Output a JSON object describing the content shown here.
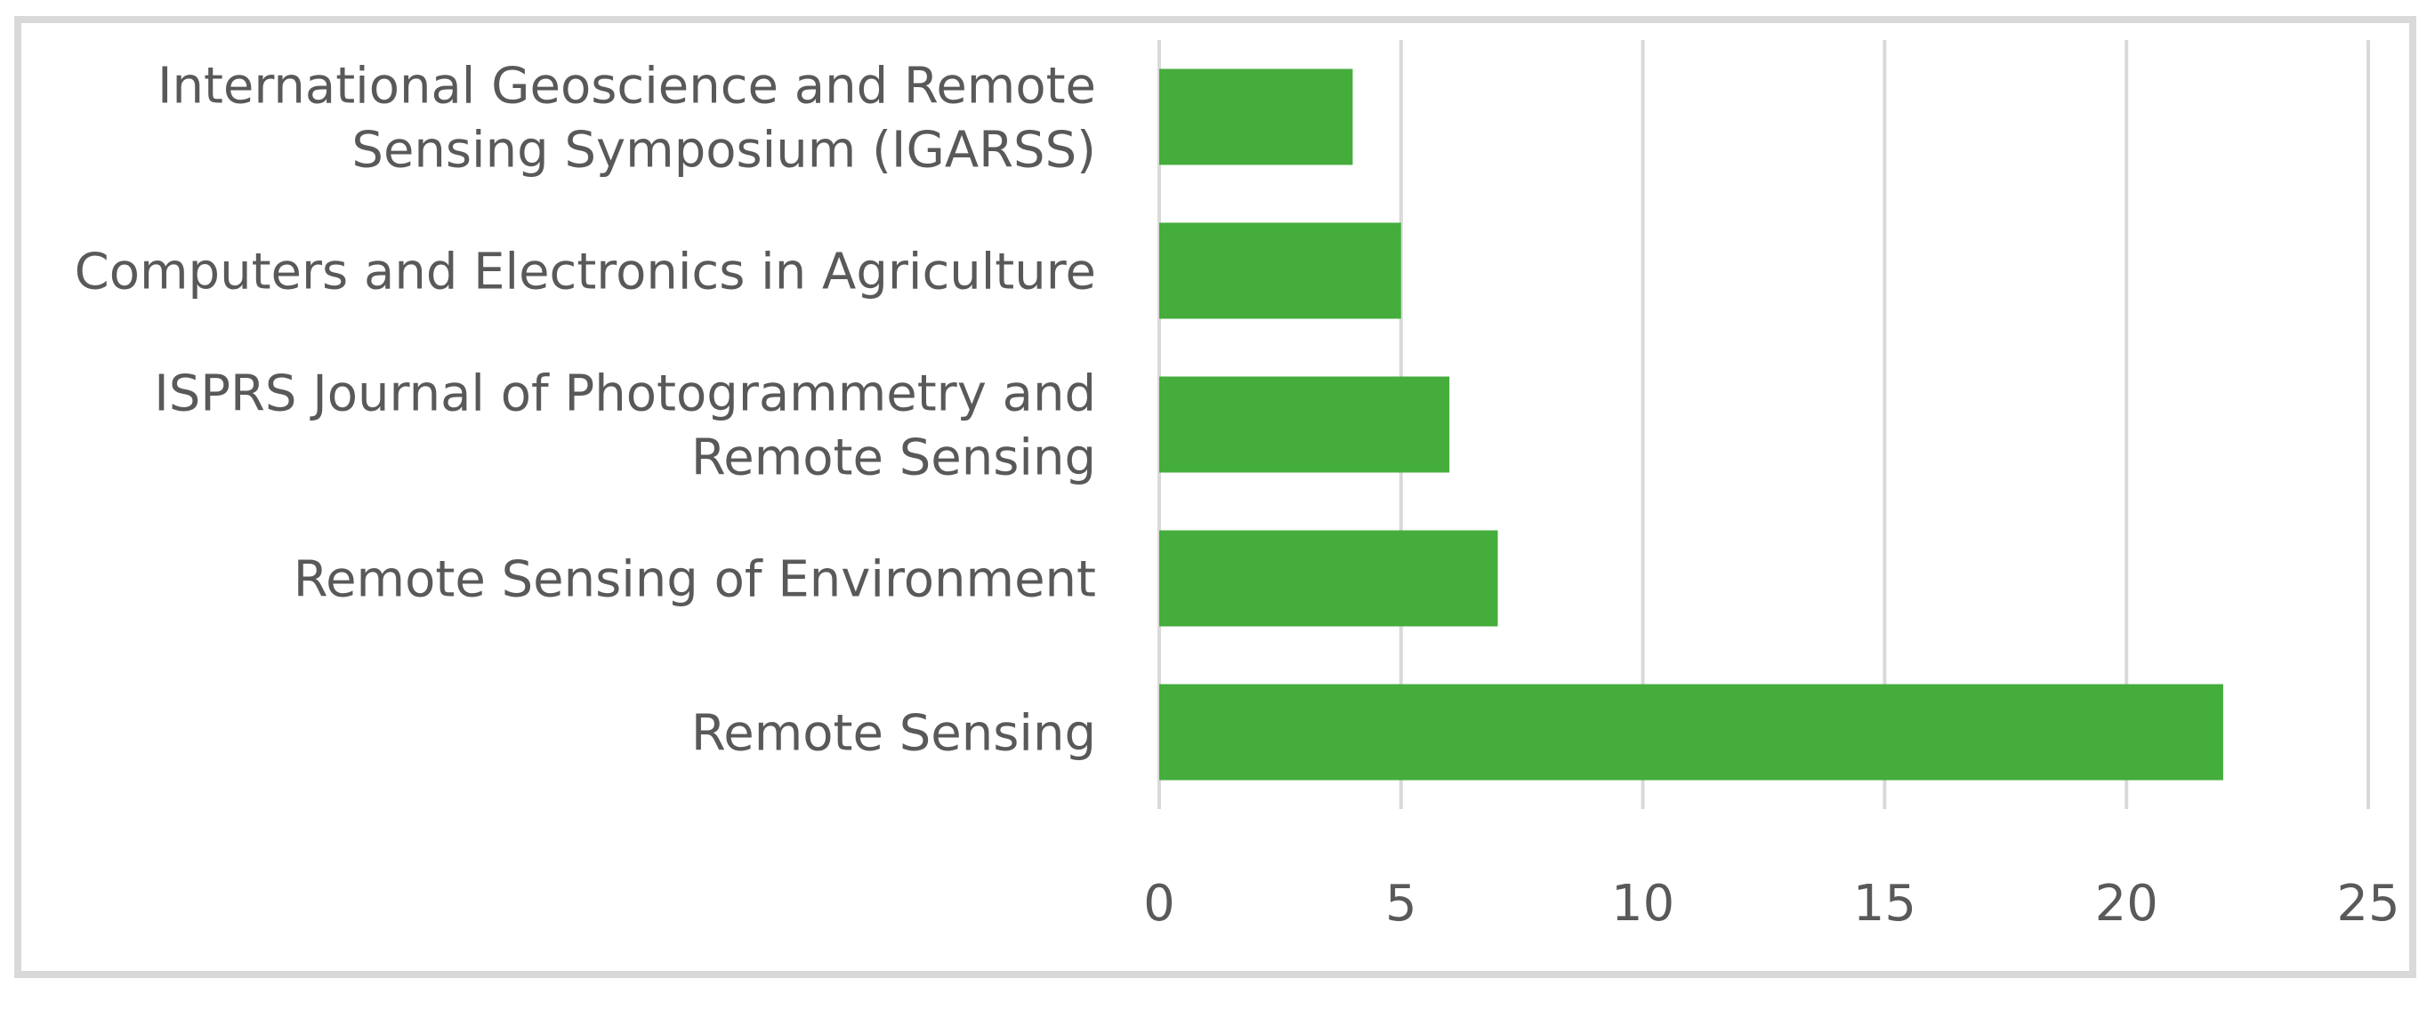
{
  "chart_data": {
    "type": "bar",
    "orientation": "horizontal",
    "categories": [
      [
        "International Geoscience and Remote",
        "Sensing Symposium (IGARSS)"
      ],
      [
        "Computers and Electronics in Agriculture"
      ],
      [
        "ISPRS Journal of Photogrammetry and",
        "Remote Sensing"
      ],
      [
        "Remote Sensing of Environment"
      ],
      [
        "Remote Sensing"
      ]
    ],
    "values": [
      4,
      5,
      6,
      7,
      22
    ],
    "xlim": [
      0,
      25
    ],
    "xticks": [
      "0",
      "5",
      "10",
      "15",
      "20",
      "25"
    ],
    "title": "",
    "xlabel": "",
    "ylabel": "",
    "grid": "vertical",
    "legend": "none",
    "colors": {
      "bar": "#44ad3b",
      "grid": "#d9d9d9",
      "text": "#595959",
      "border": "#d9d9d9"
    }
  }
}
